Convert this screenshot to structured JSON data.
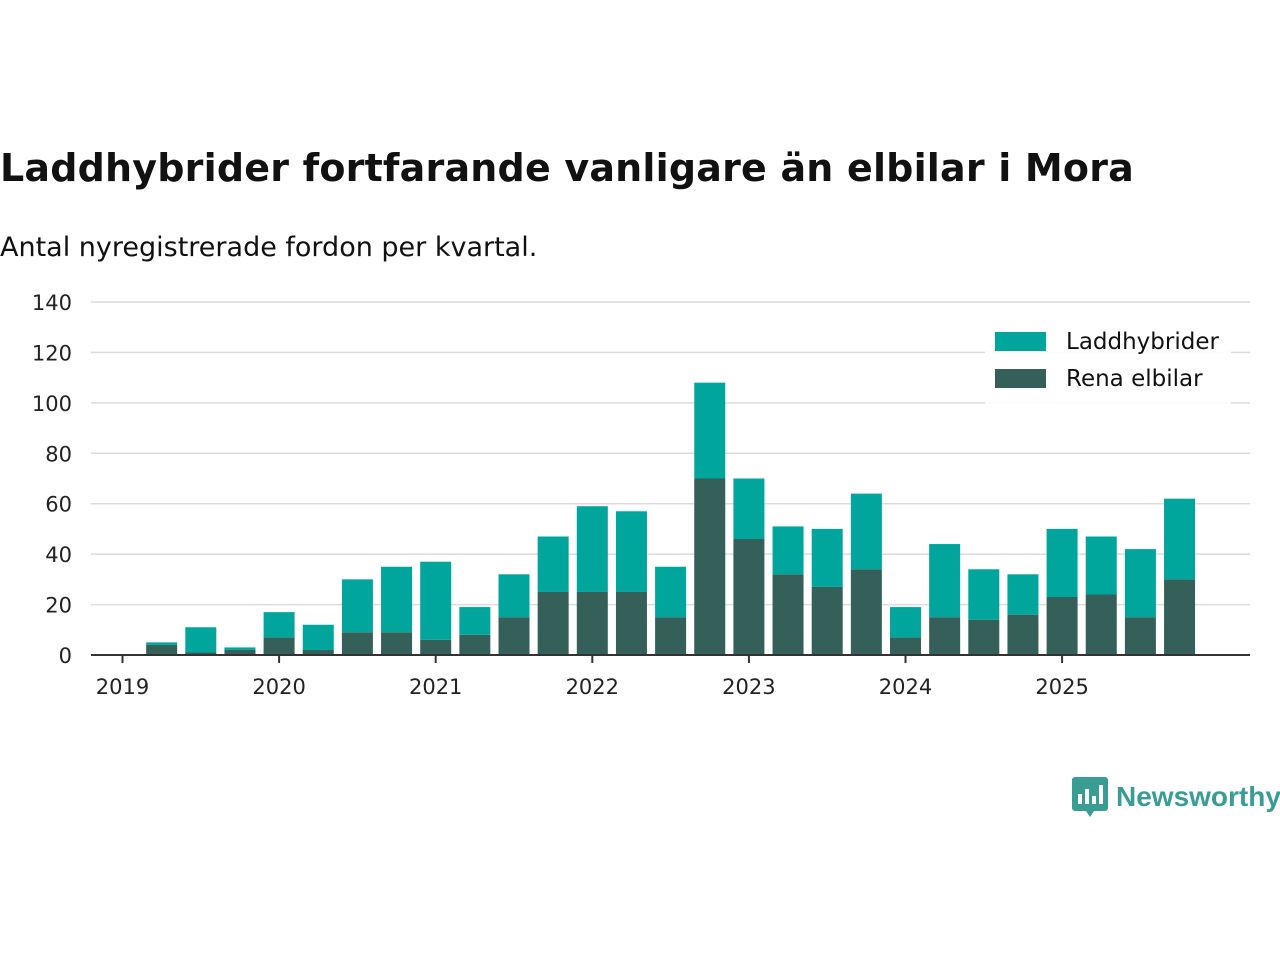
{
  "chart_data": {
    "type": "bar",
    "stacked": true,
    "title": "Laddhybrider fortfarande vanligare än elbilar i Mora",
    "subtitle": "Antal nyregistrerade fordon per kvartal.",
    "xlabel": "",
    "ylabel": "",
    "ylim": [
      0,
      140
    ],
    "yticks": [
      0,
      20,
      40,
      60,
      80,
      100,
      120,
      140
    ],
    "xtick_labels": [
      "2019",
      "2020",
      "2021",
      "2022",
      "2023",
      "2024",
      "2025"
    ],
    "categories": [
      "2019 Q1",
      "2019 Q2",
      "2019 Q3",
      "2019 Q4",
      "2020 Q1",
      "2020 Q2",
      "2020 Q3",
      "2020 Q4",
      "2021 Q1",
      "2021 Q2",
      "2021 Q3",
      "2021 Q4",
      "2022 Q1",
      "2022 Q2",
      "2022 Q3",
      "2022 Q4",
      "2023 Q1",
      "2023 Q2",
      "2023 Q3",
      "2023 Q4",
      "2024 Q1",
      "2024 Q2",
      "2024 Q3",
      "2024 Q4",
      "2025 Q1",
      "2025 Q2",
      "2025 Q3",
      "2025 Q4"
    ],
    "legend_position": "top-right",
    "series": [
      {
        "name": "Rena elbilar",
        "color": "#356059",
        "values": [
          0,
          4,
          1,
          2,
          7,
          2,
          9,
          9,
          6,
          8,
          15,
          25,
          25,
          25,
          15,
          70,
          46,
          32,
          27,
          34,
          7,
          15,
          14,
          16,
          23,
          24,
          15,
          30
        ]
      },
      {
        "name": "Laddhybrider",
        "color": "#00a59b",
        "values": [
          0,
          1,
          10,
          1,
          10,
          10,
          21,
          26,
          31,
          11,
          17,
          22,
          34,
          32,
          20,
          38,
          24,
          19,
          23,
          30,
          12,
          29,
          20,
          16,
          27,
          23,
          27,
          32
        ]
      }
    ]
  },
  "legend": {
    "items": [
      {
        "label": "Laddhybrider",
        "color": "#00a59b"
      },
      {
        "label": "Rena elbilar",
        "color": "#356059"
      }
    ]
  },
  "brand": {
    "name": "Newsworthy",
    "color": "#3a9d93",
    "icon": "newsworthy-logo-icon"
  }
}
